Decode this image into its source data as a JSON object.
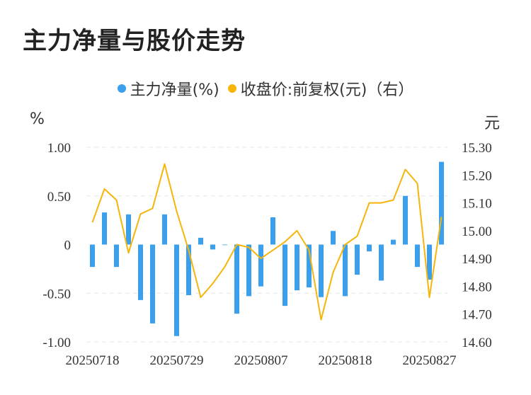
{
  "title": "主力净量与股价走势",
  "legend": {
    "series1": "主力净量(%)",
    "series2": "收盘价:前复权(元)（右）"
  },
  "units": {
    "left": "%",
    "right": "元"
  },
  "colors": {
    "bar": "#3aa0ee",
    "line": "#f5b50b",
    "grid": "#e6e6e6",
    "text": "#333333"
  },
  "chart_data": {
    "type": "bar",
    "x_tick_labels": [
      "20250718",
      "20250729",
      "20250807",
      "20250818",
      "20250827"
    ],
    "x_tick_indices": [
      0,
      7,
      14,
      21,
      28
    ],
    "series": [
      {
        "name": "主力净量(%)",
        "type": "bar",
        "axis": "left",
        "values": [
          -0.23,
          0.33,
          -0.23,
          0.31,
          -0.57,
          -0.81,
          0.31,
          -0.94,
          -0.52,
          0.07,
          -0.05,
          0.0,
          -0.71,
          -0.53,
          -0.43,
          0.28,
          -0.63,
          -0.47,
          -0.44,
          -0.54,
          0.14,
          -0.53,
          -0.31,
          -0.07,
          -0.37,
          0.05,
          0.5,
          -0.23,
          -0.36,
          0.85
        ]
      },
      {
        "name": "收盘价:前复权(元)（右）",
        "type": "line",
        "axis": "right",
        "values": [
          15.03,
          15.15,
          15.11,
          14.92,
          15.06,
          15.08,
          15.24,
          15.07,
          14.93,
          14.76,
          14.81,
          14.87,
          14.95,
          14.94,
          14.9,
          14.93,
          14.96,
          15.0,
          14.93,
          14.68,
          14.85,
          14.95,
          14.98,
          15.1,
          15.1,
          15.11,
          15.22,
          15.17,
          14.76,
          15.05
        ]
      }
    ],
    "y_left": {
      "ticks": [
        "1.00",
        "0.50",
        "0",
        "-0.50",
        "-1.00"
      ],
      "min": -1.0,
      "max": 1.0
    },
    "y_right": {
      "ticks": [
        "15.30",
        "15.20",
        "15.10",
        "15.00",
        "14.90",
        "14.80",
        "14.70",
        "14.60"
      ],
      "min": 14.6,
      "max": 15.3
    },
    "grid": "horizontal-dashed",
    "legend_position": "top-center"
  }
}
